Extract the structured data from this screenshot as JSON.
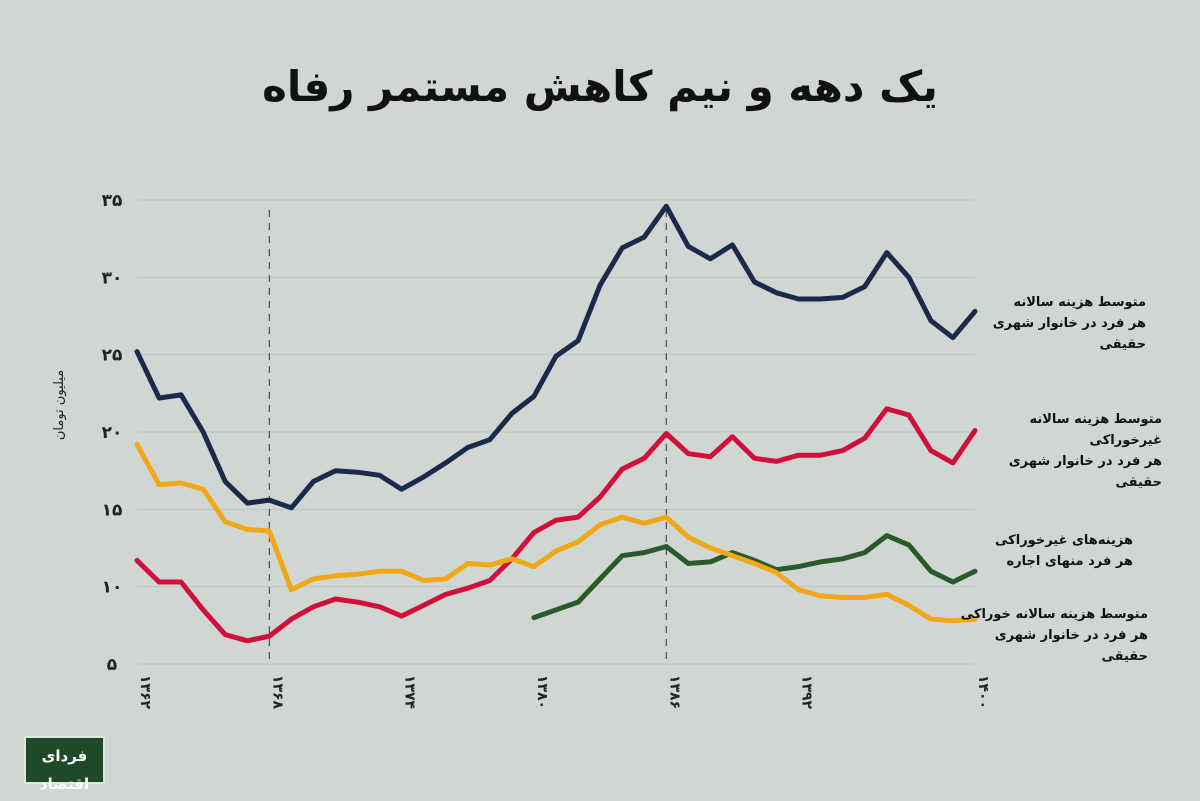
{
  "title": "یک دهه و نیم کاهش مستمر رفاه",
  "chart_data": {
    "type": "line",
    "title": "یک دهه و نیم کاهش مستمر رفاه",
    "ylabel": "میلیون تومان",
    "xlabel": "",
    "ylim": [
      5,
      35
    ],
    "xlim": [
      1362,
      1400
    ],
    "yticks": [
      5,
      10,
      15,
      20,
      25,
      30,
      35
    ],
    "ytick_labels": [
      "۵",
      "۱۰",
      "۱۵",
      "۲۰",
      "۲۵",
      "۳۰",
      "۳۵"
    ],
    "xticks": [
      1362,
      1368,
      1374,
      1380,
      1386,
      1392,
      1400
    ],
    "xtick_labels": [
      "۱۳۶۲",
      "۱۳۶۸",
      "۱۳۷۴",
      "۱۳۸۰",
      "۱۳۸۶",
      "۱۳۹۲",
      "۱۴۰۰"
    ],
    "vlines": [
      1368,
      1386
    ],
    "grid": true,
    "legend": "right, inline labels",
    "series": [
      {
        "name": "متوسط هزینه سالانه هر فرد در خانوار شهری حقیقی",
        "label_lines": [
          "متوسط هزینه سالانه",
          "هر فرد در خانوار شهری حقیقی"
        ],
        "color": "#1a2a4a",
        "x": [
          1362,
          1363,
          1364,
          1365,
          1366,
          1367,
          1368,
          1369,
          1370,
          1371,
          1372,
          1373,
          1374,
          1375,
          1376,
          1377,
          1378,
          1379,
          1380,
          1381,
          1382,
          1383,
          1384,
          1385,
          1386,
          1387,
          1388,
          1389,
          1390,
          1391,
          1392,
          1393,
          1394,
          1395,
          1396,
          1397,
          1398,
          1399,
          1400
        ],
        "values": [
          25.2,
          22.2,
          22.4,
          20.0,
          16.8,
          15.4,
          15.6,
          15.1,
          16.8,
          17.5,
          17.4,
          17.2,
          16.3,
          17.1,
          18.0,
          19.0,
          19.5,
          21.2,
          22.3,
          24.9,
          25.9,
          29.5,
          31.9,
          32.6,
          34.6,
          32.0,
          31.2,
          32.1,
          29.7,
          29.0,
          28.6,
          28.6,
          28.7,
          29.4,
          31.6,
          30.0,
          27.2,
          26.1,
          27.8
        ]
      },
      {
        "name": "متوسط هزینه سالانه غیرخوراکی هر فرد در خانوار شهری حقیقی",
        "label_lines": [
          "متوسط هزینه سالانه غیرخوراکی",
          "هر فرد در خانوار شهری حقیقی"
        ],
        "color": "#d0103a",
        "x": [
          1362,
          1363,
          1364,
          1365,
          1366,
          1367,
          1368,
          1369,
          1370,
          1371,
          1372,
          1373,
          1374,
          1375,
          1376,
          1377,
          1378,
          1379,
          1380,
          1381,
          1382,
          1383,
          1384,
          1385,
          1386,
          1387,
          1388,
          1389,
          1390,
          1391,
          1392,
          1393,
          1394,
          1395,
          1396,
          1397,
          1398,
          1399,
          1400
        ],
        "values": [
          11.7,
          10.3,
          10.3,
          8.5,
          6.9,
          6.5,
          6.8,
          7.9,
          8.7,
          9.2,
          9.0,
          8.7,
          8.1,
          8.8,
          9.5,
          9.9,
          10.4,
          11.8,
          13.5,
          14.3,
          14.5,
          15.8,
          17.6,
          18.3,
          19.9,
          18.6,
          18.4,
          19.7,
          18.3,
          18.1,
          18.5,
          18.5,
          18.8,
          19.6,
          21.5,
          21.1,
          18.8,
          18.0,
          20.1
        ]
      },
      {
        "name": "هزینه‌های غیرخوراکی هر فرد منهای اجاره",
        "label_lines": [
          "هزینه‌های غیرخوراکی",
          "هر فرد منهای اجاره"
        ],
        "color": "#2a5a2a",
        "x": [
          1380,
          1381,
          1382,
          1383,
          1384,
          1385,
          1386,
          1387,
          1388,
          1389,
          1390,
          1391,
          1392,
          1393,
          1394,
          1395,
          1396,
          1397,
          1398,
          1399,
          1400
        ],
        "values": [
          8.0,
          8.5,
          9.0,
          10.5,
          12.0,
          12.2,
          12.6,
          11.5,
          11.6,
          12.2,
          11.7,
          11.1,
          11.3,
          11.6,
          11.8,
          12.2,
          13.3,
          12.7,
          11.0,
          10.3,
          11.0
        ]
      },
      {
        "name": "متوسط هزینه سالانه خوراکی هر فرد در خانوار شهری حقیقی",
        "label_lines": [
          "متوسط هزینه سالانه خوراکی",
          "هر فرد در خانوار شهری حقیقی"
        ],
        "color": "#f0a818",
        "x": [
          1362,
          1363,
          1364,
          1365,
          1366,
          1367,
          1368,
          1369,
          1370,
          1371,
          1372,
          1373,
          1374,
          1375,
          1376,
          1377,
          1378,
          1379,
          1380,
          1381,
          1382,
          1383,
          1384,
          1385,
          1386,
          1387,
          1388,
          1389,
          1390,
          1391,
          1392,
          1393,
          1394,
          1395,
          1396,
          1397,
          1398,
          1399,
          1400
        ],
        "values": [
          19.2,
          16.6,
          16.7,
          16.3,
          14.2,
          13.7,
          13.6,
          9.8,
          10.5,
          10.7,
          10.8,
          11.0,
          11.0,
          10.4,
          10.5,
          11.5,
          11.4,
          11.8,
          11.3,
          12.3,
          12.9,
          14.0,
          14.5,
          14.1,
          14.5,
          13.2,
          12.5,
          12.0,
          11.5,
          10.9,
          9.8,
          9.4,
          9.3,
          9.3,
          9.5,
          8.8,
          7.9,
          7.8,
          7.9
        ]
      }
    ]
  },
  "logo": {
    "main": "فردای اقتصاد"
  }
}
